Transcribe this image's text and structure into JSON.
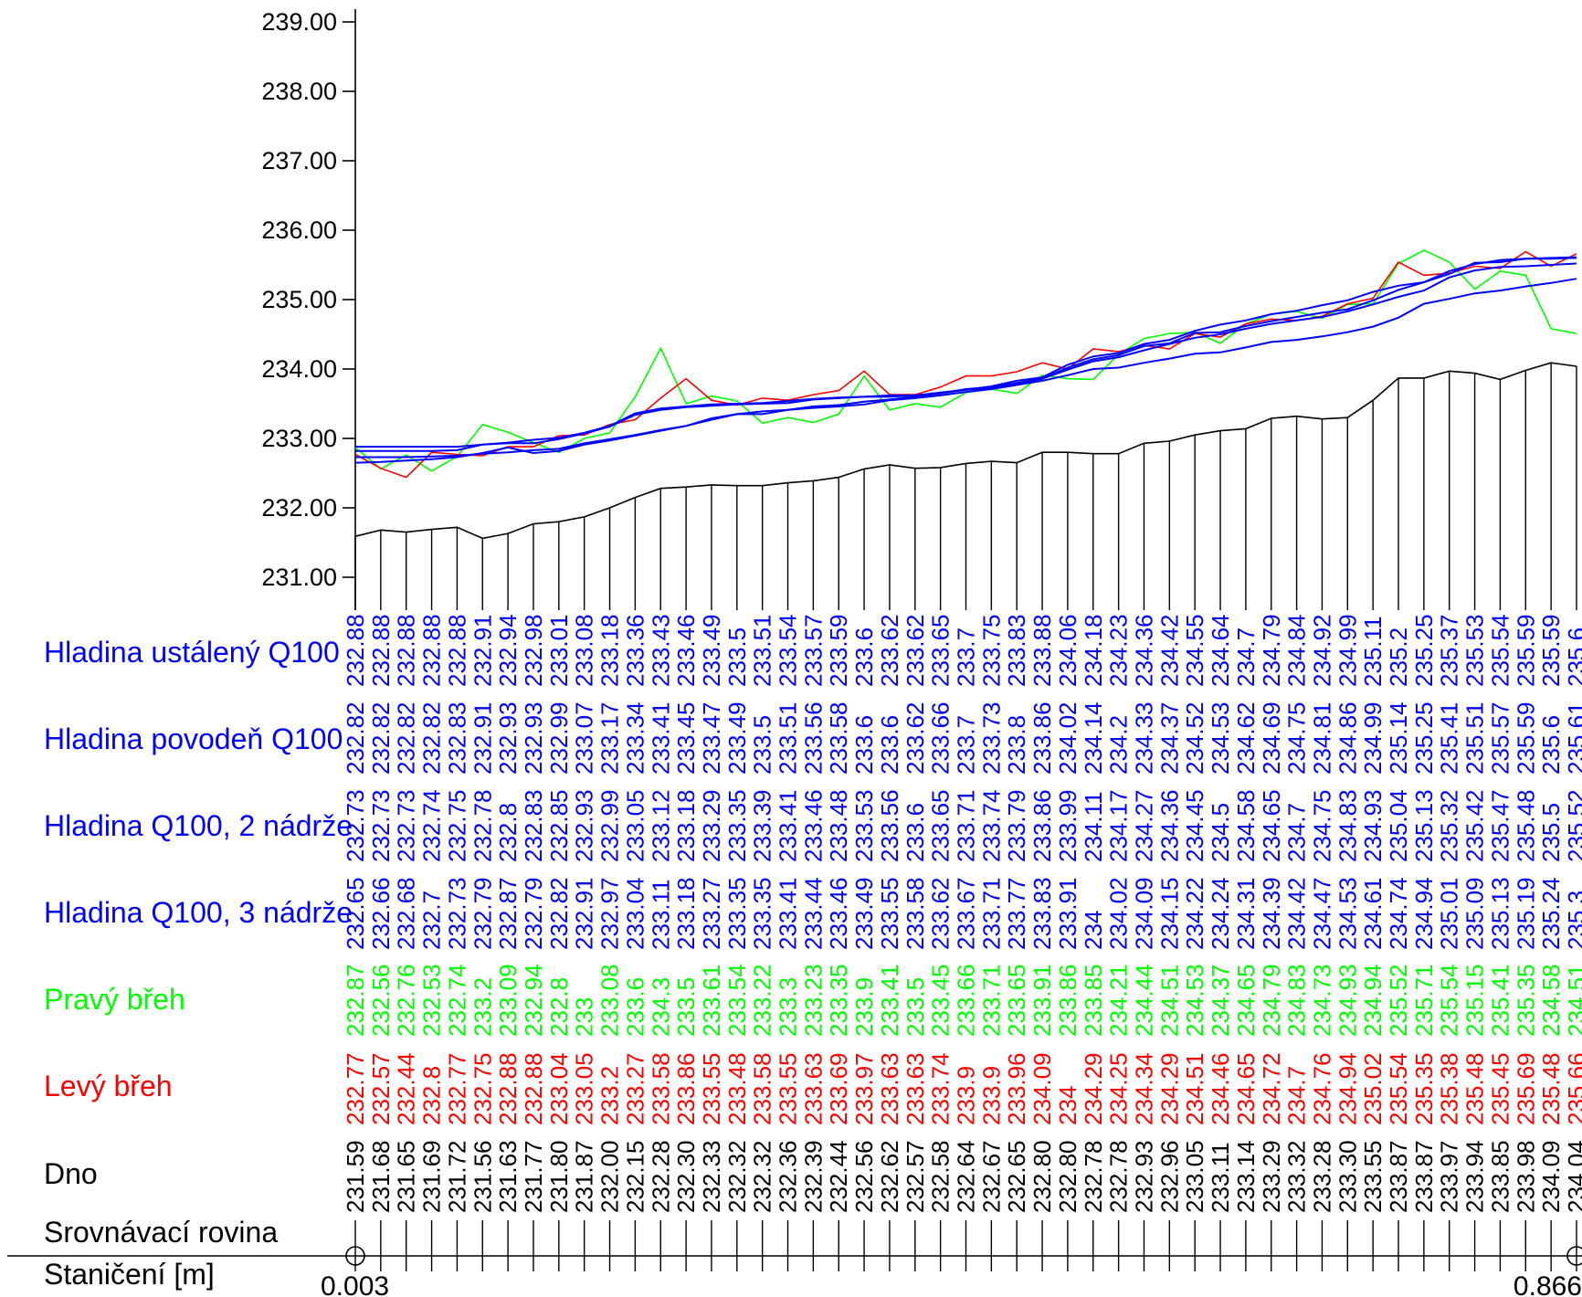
{
  "chart_data": {
    "type": "line",
    "title": "",
    "xlabel": "",
    "ylabel": "",
    "ylim": [
      231.0,
      239.0
    ],
    "y_ticks": [
      "239.00",
      "238.00",
      "237.00",
      "236.00",
      "235.00",
      "234.00",
      "233.00",
      "232.00",
      "231.00"
    ],
    "grid": false,
    "stations_count": 49,
    "station_start": "0.003",
    "station_end": "0.866",
    "rows": [
      {
        "key": "ustaleny",
        "name": "Hladina ustálený Q100",
        "color": "#0000ff",
        "plot": true,
        "values": [
          232.88,
          232.88,
          232.88,
          232.88,
          232.88,
          232.91,
          232.94,
          232.98,
          233.01,
          233.08,
          233.18,
          233.36,
          233.43,
          233.46,
          233.49,
          233.5,
          233.51,
          233.54,
          233.57,
          233.59,
          233.6,
          233.62,
          233.62,
          233.65,
          233.7,
          233.75,
          233.83,
          233.88,
          234.06,
          234.18,
          234.23,
          234.36,
          234.42,
          234.55,
          234.64,
          234.7,
          234.79,
          234.84,
          234.92,
          234.99,
          235.11,
          235.2,
          235.25,
          235.37,
          235.53,
          235.54,
          235.59,
          235.59,
          235.6
        ]
      },
      {
        "key": "povoden",
        "name": "Hladina povodeň Q100",
        "color": "#0000ff",
        "plot": true,
        "values": [
          232.82,
          232.82,
          232.82,
          232.82,
          232.83,
          232.91,
          232.93,
          232.93,
          232.99,
          233.07,
          233.17,
          233.34,
          233.41,
          233.45,
          233.47,
          233.49,
          233.5,
          233.51,
          233.56,
          233.58,
          233.6,
          233.6,
          233.62,
          233.66,
          233.7,
          233.73,
          233.8,
          233.86,
          234.02,
          234.14,
          234.2,
          234.33,
          234.37,
          234.52,
          234.53,
          234.62,
          234.69,
          234.75,
          234.81,
          234.86,
          234.99,
          235.14,
          235.25,
          235.41,
          235.51,
          235.57,
          235.59,
          235.6,
          235.61
        ]
      },
      {
        "key": "nadrze2",
        "name": "Hladina Q100, 2 nádrže",
        "color": "#0000ff",
        "plot": true,
        "values": [
          232.73,
          232.73,
          232.73,
          232.74,
          232.75,
          232.78,
          232.8,
          232.83,
          232.85,
          232.93,
          232.99,
          233.05,
          233.12,
          233.18,
          233.29,
          233.35,
          233.39,
          233.41,
          233.46,
          233.48,
          233.53,
          233.56,
          233.6,
          233.65,
          233.71,
          233.74,
          233.79,
          233.86,
          233.99,
          234.11,
          234.17,
          234.27,
          234.36,
          234.45,
          234.5,
          234.58,
          234.65,
          234.7,
          234.75,
          234.83,
          234.93,
          235.04,
          235.13,
          235.32,
          235.42,
          235.47,
          235.48,
          235.5,
          235.52
        ]
      },
      {
        "key": "nadrze3",
        "name": "Hladina Q100, 3 nádrže",
        "color": "#0000ff",
        "plot": true,
        "values": [
          232.65,
          232.66,
          232.68,
          232.7,
          232.73,
          232.79,
          232.87,
          232.79,
          232.82,
          232.91,
          232.97,
          233.04,
          233.11,
          233.18,
          233.27,
          233.35,
          233.35,
          233.41,
          233.44,
          233.46,
          233.49,
          233.55,
          233.58,
          233.62,
          233.67,
          233.71,
          233.77,
          233.83,
          233.91,
          234,
          234.02,
          234.09,
          234.15,
          234.22,
          234.24,
          234.31,
          234.39,
          234.42,
          234.47,
          234.53,
          234.61,
          234.74,
          234.94,
          235.01,
          235.09,
          235.13,
          235.19,
          235.24,
          235.3
        ]
      },
      {
        "key": "pravy",
        "name": "Pravý břeh",
        "color": "#00ff00",
        "plot": true,
        "values": [
          232.87,
          232.56,
          232.76,
          232.53,
          232.74,
          233.2,
          233.09,
          232.94,
          232.8,
          233,
          233.08,
          233.6,
          234.3,
          233.5,
          233.61,
          233.54,
          233.22,
          233.3,
          233.23,
          233.35,
          233.9,
          233.41,
          233.5,
          233.45,
          233.66,
          233.71,
          233.65,
          233.91,
          233.86,
          233.85,
          234.21,
          234.44,
          234.51,
          234.53,
          234.37,
          234.65,
          234.79,
          234.83,
          234.73,
          234.93,
          234.94,
          235.52,
          235.71,
          235.54,
          235.15,
          235.41,
          235.35,
          234.58,
          234.51
        ]
      },
      {
        "key": "levy",
        "name": "Levý břeh",
        "color": "#ff0000",
        "plot": true,
        "values": [
          232.77,
          232.57,
          232.44,
          232.8,
          232.77,
          232.75,
          232.88,
          232.88,
          233.04,
          233.05,
          233.2,
          233.27,
          233.58,
          233.86,
          233.55,
          233.48,
          233.58,
          233.55,
          233.63,
          233.69,
          233.97,
          233.63,
          233.63,
          233.74,
          233.9,
          233.9,
          233.96,
          234.09,
          234,
          234.29,
          234.25,
          234.34,
          234.29,
          234.51,
          234.46,
          234.65,
          234.72,
          234.7,
          234.76,
          234.94,
          235.02,
          235.54,
          235.35,
          235.38,
          235.48,
          235.45,
          235.69,
          235.48,
          235.66
        ]
      },
      {
        "key": "dno",
        "name": "Dno",
        "color": "#000000",
        "plot": true,
        "display": [
          "231.59",
          "231.68",
          "231.65",
          "231.69",
          "231.72",
          "231.56",
          "231.63",
          "231.77",
          "231.80",
          "231.87",
          "232.00",
          "232.15",
          "232.28",
          "232.30",
          "232.33",
          "232.32",
          "232.32",
          "232.36",
          "232.39",
          "232.44",
          "232.56",
          "232.62",
          "232.57",
          "232.58",
          "232.64",
          "232.67",
          "232.65",
          "232.80",
          "232.80",
          "232.78",
          "232.78",
          "232.93",
          "232.96",
          "233.05",
          "233.11",
          "233.14",
          "233.29",
          "233.32",
          "233.28",
          "233.30",
          "233.55",
          "233.87",
          "233.87",
          "233.97",
          "233.94",
          "233.85",
          "233.98",
          "234.09",
          "234.04"
        ]
      },
      {
        "key": "srovnavaci",
        "name": "Srovnávací rovina",
        "color": "#000000",
        "plot": false
      },
      {
        "key": "staniceni",
        "name": "Staničení [m]",
        "color": "#000000",
        "plot": false
      }
    ]
  }
}
